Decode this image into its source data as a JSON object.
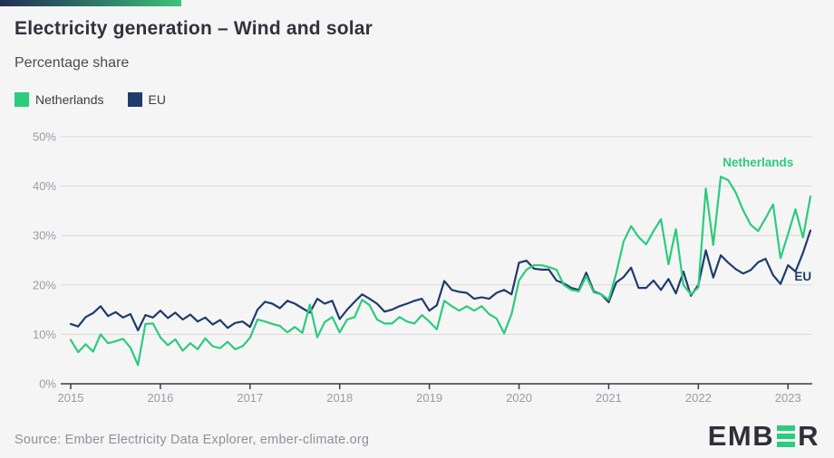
{
  "header": {
    "title": "Electricity generation – Wind and solar",
    "subtitle": "Percentage share"
  },
  "legend": [
    {
      "label": "Netherlands",
      "color": "#2ccb7d"
    },
    {
      "label": "EU",
      "color": "#1f3c6b"
    }
  ],
  "colors": {
    "background": "#f5f5f6",
    "netherlands": "#2ccb7d",
    "eu": "#1f3c6b",
    "gridline": "#d8d8da",
    "axis": "#3c3c40",
    "axis_label": "#9b9ba2",
    "top_bar_gradient": [
      "#222f55",
      "#3ec377"
    ]
  },
  "chart_data": {
    "type": "line",
    "title": "Electricity generation – Wind and solar",
    "subtitle": "Percentage share",
    "unit": "%",
    "ylim": [
      0,
      50
    ],
    "yticks": [
      "0%",
      "10%",
      "20%",
      "30%",
      "40%",
      "50%"
    ],
    "xticks": [
      "2015",
      "2016",
      "2017",
      "2018",
      "2019",
      "2020",
      "2021",
      "2022",
      "2023"
    ],
    "grid": true,
    "x_frequency": "monthly",
    "x": [
      "2015-01",
      "2015-02",
      "2015-03",
      "2015-04",
      "2015-05",
      "2015-06",
      "2015-07",
      "2015-08",
      "2015-09",
      "2015-10",
      "2015-11",
      "2015-12",
      "2016-01",
      "2016-02",
      "2016-03",
      "2016-04",
      "2016-05",
      "2016-06",
      "2016-07",
      "2016-08",
      "2016-09",
      "2016-10",
      "2016-11",
      "2016-12",
      "2017-01",
      "2017-02",
      "2017-03",
      "2017-04",
      "2017-05",
      "2017-06",
      "2017-07",
      "2017-08",
      "2017-09",
      "2017-10",
      "2017-11",
      "2017-12",
      "2018-01",
      "2018-02",
      "2018-03",
      "2018-04",
      "2018-05",
      "2018-06",
      "2018-07",
      "2018-08",
      "2018-09",
      "2018-10",
      "2018-11",
      "2018-12",
      "2019-01",
      "2019-02",
      "2019-03",
      "2019-04",
      "2019-05",
      "2019-06",
      "2019-07",
      "2019-08",
      "2019-09",
      "2019-10",
      "2019-11",
      "2019-12",
      "2020-01",
      "2020-02",
      "2020-03",
      "2020-04",
      "2020-05",
      "2020-06",
      "2020-07",
      "2020-08",
      "2020-09",
      "2020-10",
      "2020-11",
      "2020-12",
      "2021-01",
      "2021-02",
      "2021-03",
      "2021-04",
      "2021-05",
      "2021-06",
      "2021-07",
      "2021-08",
      "2021-09",
      "2021-10",
      "2021-11",
      "2021-12",
      "2022-01",
      "2022-02",
      "2022-03",
      "2022-04",
      "2022-05",
      "2022-06",
      "2022-07",
      "2022-08",
      "2022-09",
      "2022-10",
      "2022-11",
      "2022-12",
      "2023-01",
      "2023-02",
      "2023-03",
      "2023-04"
    ],
    "series": [
      {
        "name": "Netherlands",
        "color": "#2ccb7d",
        "values": [
          8.9,
          6.4,
          8.0,
          6.5,
          10.0,
          8.2,
          8.6,
          9.1,
          7.3,
          3.8,
          12.1,
          12.2,
          9.4,
          7.8,
          9.0,
          6.7,
          8.2,
          7.0,
          9.2,
          7.6,
          7.2,
          8.5,
          7.0,
          7.6,
          9.3,
          13.0,
          12.6,
          12.1,
          11.7,
          10.4,
          11.5,
          10.3,
          16.0,
          9.4,
          12.5,
          13.5,
          10.4,
          13.0,
          13.5,
          17.0,
          15.9,
          13.0,
          12.2,
          12.2,
          13.5,
          12.6,
          12.2,
          13.9,
          12.6,
          11.0,
          16.8,
          15.7,
          14.8,
          15.7,
          14.8,
          15.7,
          14.1,
          13.2,
          10.2,
          14.1,
          20.9,
          23.1,
          24.0,
          24.0,
          23.6,
          23.1,
          20.0,
          19.0,
          18.7,
          21.8,
          18.5,
          18.1,
          17.0,
          22.3,
          28.8,
          31.9,
          29.7,
          28.2,
          30.9,
          33.3,
          24.2,
          31.3,
          20.0,
          18.1,
          19.5,
          39.5,
          28.1,
          41.9,
          41.2,
          38.7,
          35.1,
          32.2,
          30.9,
          33.5,
          36.3,
          25.4,
          30.3,
          35.3,
          29.6,
          37.9
        ]
      },
      {
        "name": "EU",
        "color": "#1f3c6b",
        "values": [
          12.1,
          11.6,
          13.5,
          14.3,
          15.7,
          13.7,
          14.5,
          13.4,
          14.1,
          10.8,
          13.9,
          13.4,
          14.8,
          13.3,
          14.4,
          13.0,
          14.0,
          12.6,
          13.4,
          12.0,
          12.9,
          11.3,
          12.3,
          12.6,
          11.5,
          15.0,
          16.6,
          16.2,
          15.3,
          16.8,
          16.2,
          15.3,
          14.4,
          17.2,
          16.2,
          16.8,
          13.1,
          15.0,
          16.6,
          18.1,
          17.2,
          16.2,
          14.6,
          15.0,
          15.7,
          16.2,
          16.8,
          17.2,
          14.8,
          15.9,
          20.8,
          19.0,
          18.6,
          18.4,
          17.2,
          17.5,
          17.2,
          18.4,
          19.0,
          18.1,
          24.5,
          24.9,
          23.3,
          23.1,
          23.1,
          20.9,
          20.3,
          19.4,
          19.0,
          22.5,
          18.7,
          18.1,
          16.5,
          20.5,
          21.6,
          23.5,
          19.4,
          19.4,
          20.9,
          19.0,
          21.2,
          18.3,
          22.7,
          17.8,
          20.0,
          27.0,
          21.5,
          26.0,
          24.5,
          23.2,
          22.3,
          23.0,
          24.6,
          25.3,
          22.0,
          20.2,
          24.0,
          22.7,
          26.5,
          31.0
        ]
      }
    ],
    "annotations": [
      {
        "text": "Netherlands",
        "month_index": 92,
        "pct": 44.0,
        "color": "#2ccb7d"
      },
      {
        "text": "EU",
        "month_index": 98,
        "pct": 20.9,
        "color": "#1f3c6b"
      }
    ],
    "legend_position": "top-left"
  },
  "footer": {
    "source": "Source: Ember Electricity Data Explorer, ember-climate.org",
    "logo_part_1": "EMB",
    "logo_part_2": "R",
    "logo_bar_color": "#2bcc7e"
  }
}
